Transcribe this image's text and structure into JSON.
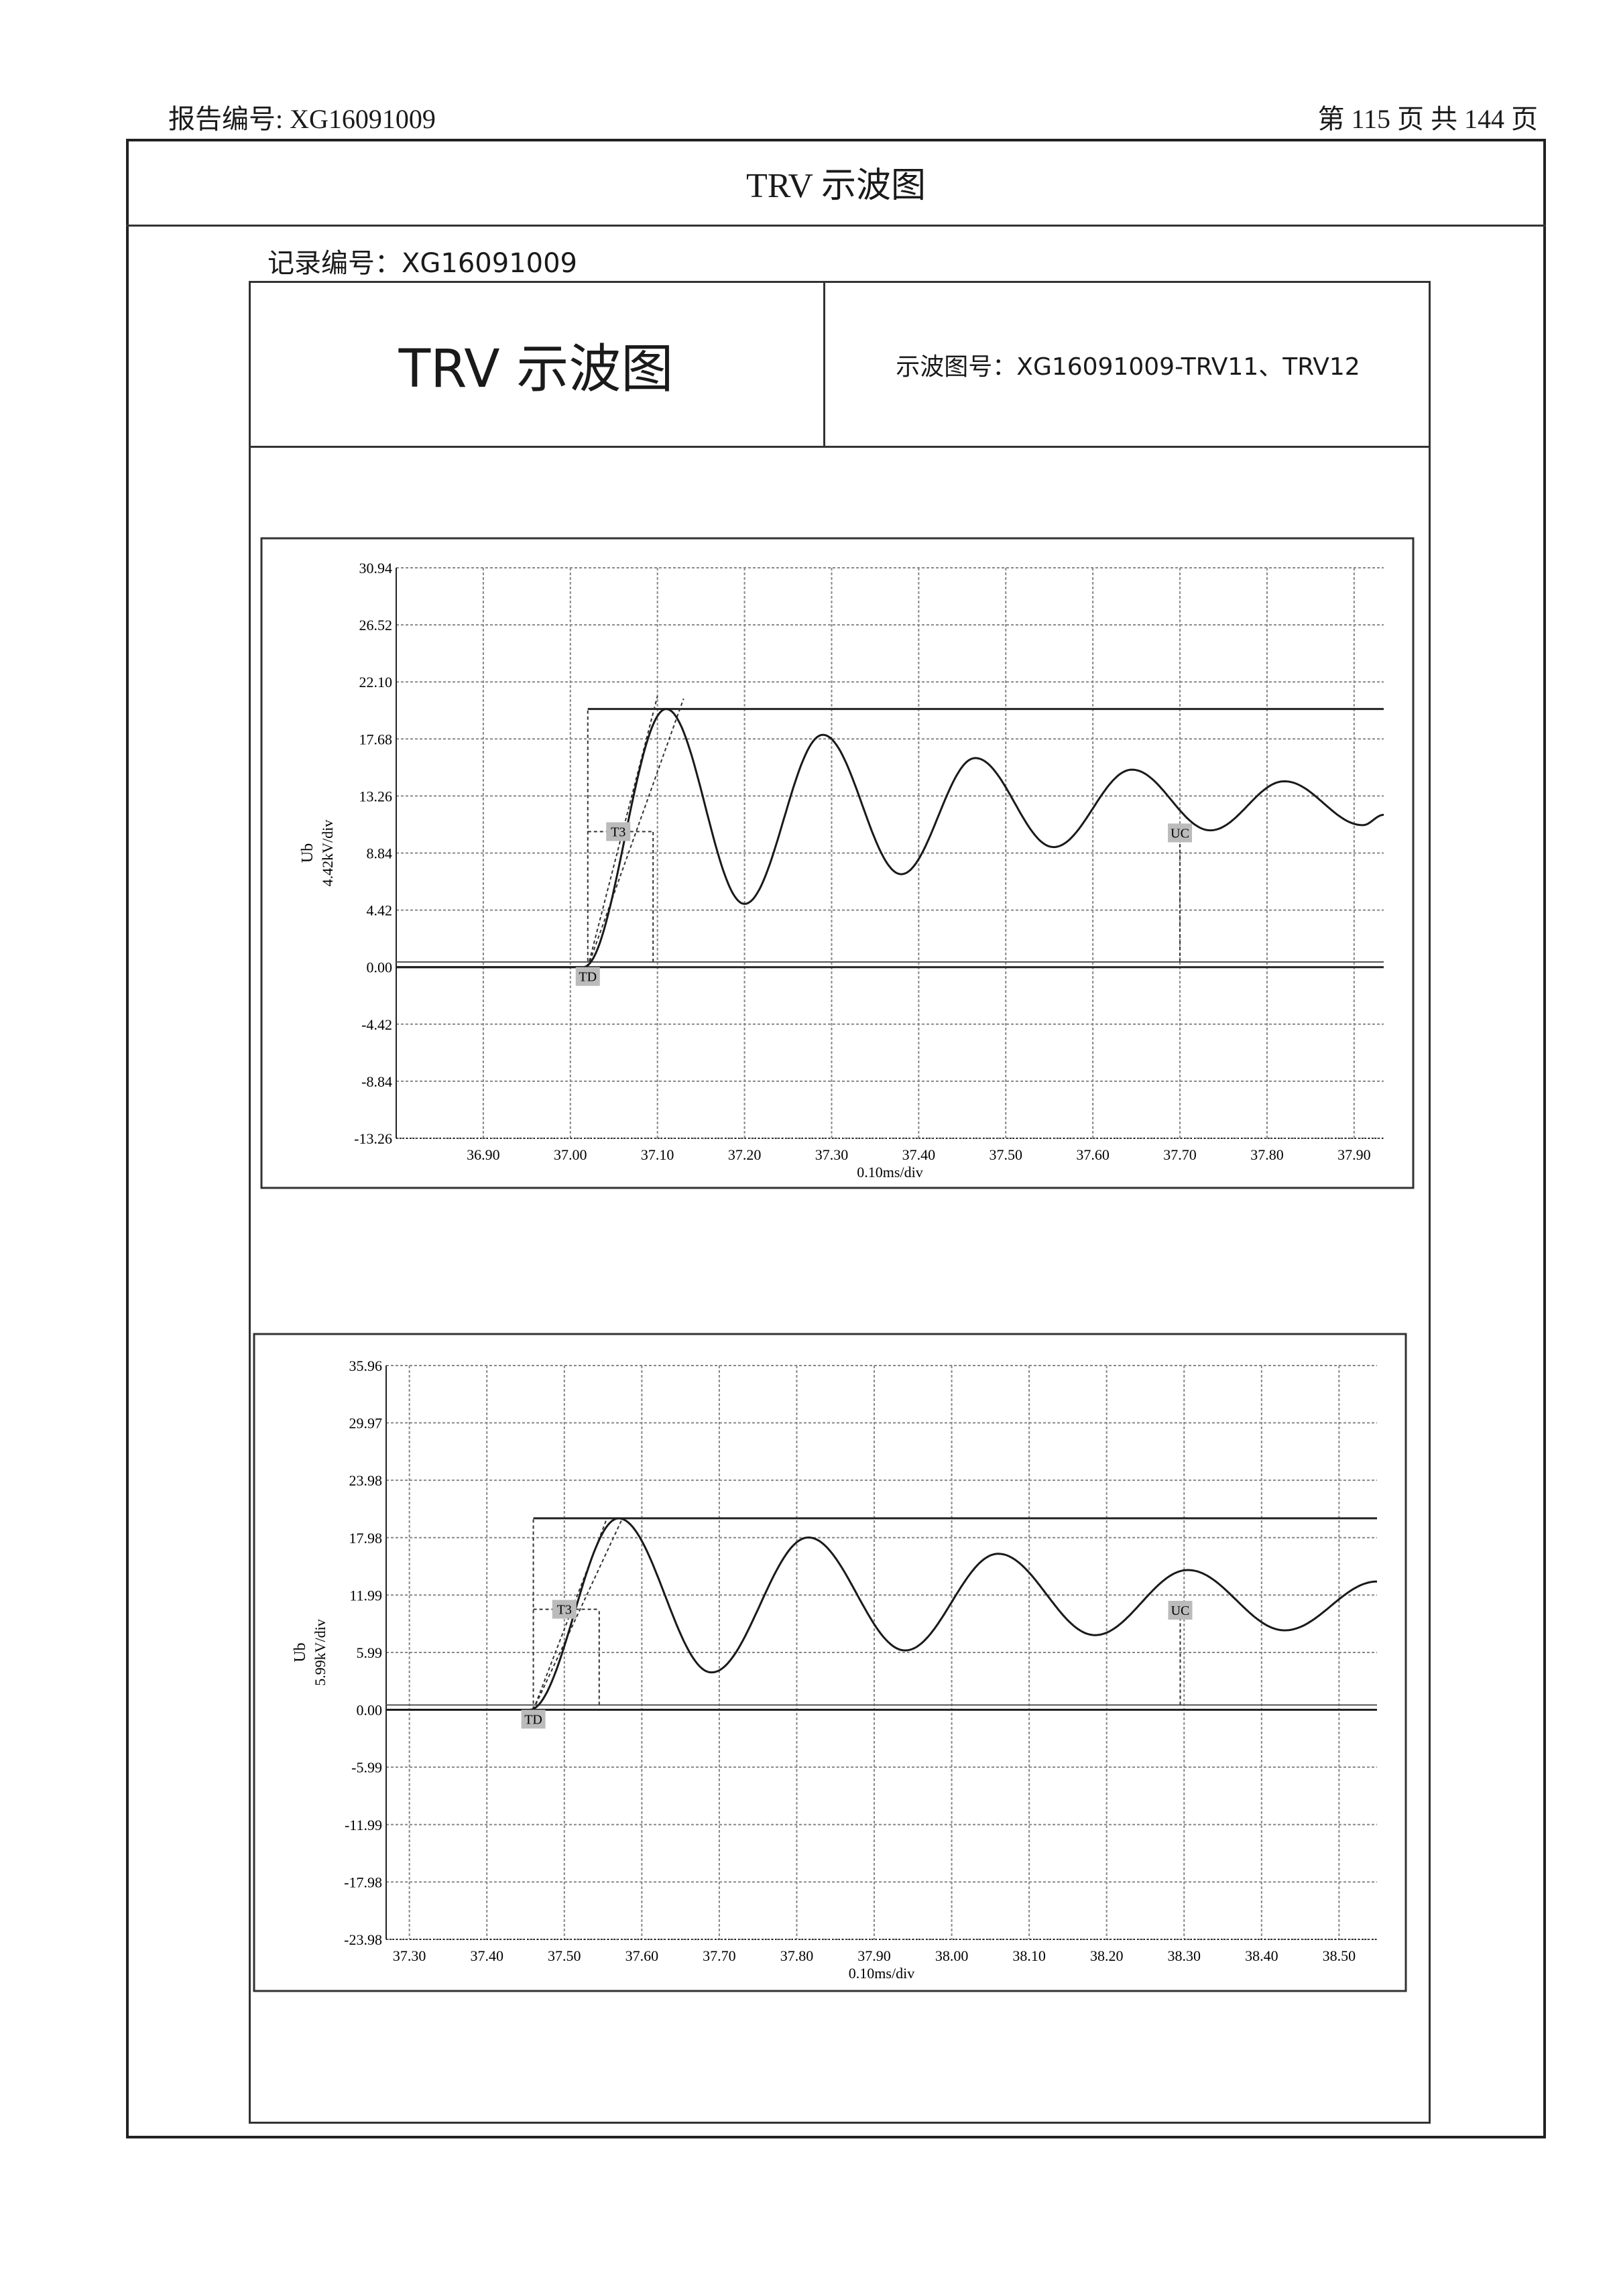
{
  "header": {
    "report_no": "报告编号: XG16091009",
    "page_info": "第 115 页 共 144 页"
  },
  "outer_title": "TRV 示波图",
  "record_no": "记录编号：XG16091009",
  "form": {
    "title": "TRV 示波图",
    "figure_no": "示波图号：XG16091009-TRV11、TRV12"
  },
  "chart_data": [
    {
      "type": "line",
      "ylabel": "Ub",
      "yscale_label": "4.42kV/div",
      "xlabel": "0.10ms/div",
      "xlim": [
        36.8,
        37.934
      ],
      "ylim": [
        -13.26,
        30.94
      ],
      "xticks": [
        "36.90",
        "37.00",
        "37.10",
        "37.20",
        "37.30",
        "37.40",
        "37.50",
        "37.60",
        "37.70",
        "37.80",
        "37.90"
      ],
      "yticks": [
        "30.94",
        "26.52",
        "22.10",
        "17.68",
        "13.26",
        "8.84",
        "4.42",
        "0.00",
        "-4.42",
        "-8.84",
        "-13.26"
      ],
      "grid": true,
      "series_extrema": [
        [
          36.8,
          0
        ],
        [
          37.015,
          0
        ],
        [
          37.11,
          20.0
        ],
        [
          37.2,
          4.9
        ],
        [
          37.29,
          18.0
        ],
        [
          37.38,
          7.2
        ],
        [
          37.465,
          16.2
        ],
        [
          37.555,
          9.3
        ],
        [
          37.645,
          15.3
        ],
        [
          37.735,
          10.6
        ],
        [
          37.82,
          14.4
        ],
        [
          37.91,
          11.0
        ],
        [
          37.934,
          11.8
        ]
      ],
      "peak_level": 20.0,
      "threshold_level": 0.4,
      "markers": [
        {
          "label": "TD",
          "x": 37.02,
          "y": 0
        },
        {
          "label": "T3",
          "x": 37.055,
          "y": 10.5
        },
        {
          "label": "UC",
          "x": 37.7,
          "y": 10.4
        }
      ],
      "t3_x": 37.095,
      "tangent_ends": [
        [
          37.1,
          21.0
        ],
        [
          37.13,
          20.8
        ]
      ]
    },
    {
      "type": "line",
      "ylabel": "Ub",
      "yscale_label": "5.99kV/div",
      "xlabel": "0.10ms/div",
      "xlim": [
        37.27,
        38.549
      ],
      "ylim": [
        -23.98,
        35.96
      ],
      "xticks": [
        "37.30",
        "37.40",
        "37.50",
        "37.60",
        "37.70",
        "37.80",
        "37.90",
        "38.00",
        "38.10",
        "38.20",
        "38.30",
        "38.40",
        "38.50"
      ],
      "yticks": [
        "35.96",
        "29.97",
        "23.98",
        "17.98",
        "11.99",
        "5.99",
        "0.00",
        "-5.99",
        "-11.99",
        "-17.98",
        "-23.98"
      ],
      "grid": true,
      "series_extrema": [
        [
          37.27,
          0
        ],
        [
          37.455,
          0
        ],
        [
          37.57,
          20.0
        ],
        [
          37.69,
          3.9
        ],
        [
          37.815,
          18.0
        ],
        [
          37.94,
          6.2
        ],
        [
          38.06,
          16.3
        ],
        [
          38.185,
          7.8
        ],
        [
          38.305,
          14.6
        ],
        [
          38.43,
          8.3
        ],
        [
          38.549,
          13.4
        ]
      ],
      "peak_level": 20.0,
      "threshold_level": 0.5,
      "markers": [
        {
          "label": "TD",
          "x": 37.46,
          "y": 0
        },
        {
          "label": "T3",
          "x": 37.5,
          "y": 10.5
        },
        {
          "label": "UC",
          "x": 38.295,
          "y": 10.4
        }
      ],
      "t3_x": 37.545,
      "tangent_ends": [
        [
          37.555,
          20.0
        ],
        [
          37.575,
          20.0
        ]
      ]
    }
  ]
}
